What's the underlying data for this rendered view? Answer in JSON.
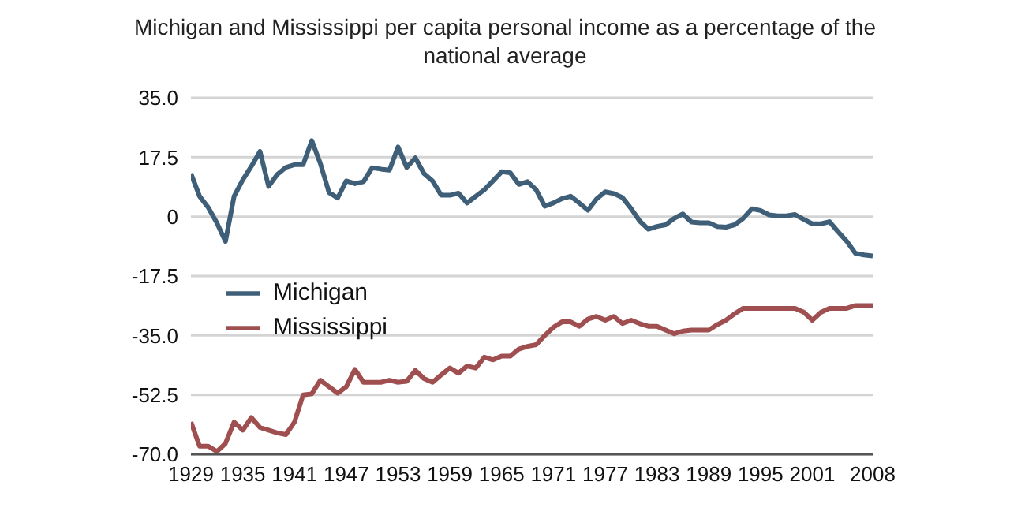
{
  "chart_data": {
    "type": "line",
    "title": "Michigan and Mississippi per capita personal income as a percentage of the national average",
    "x": [
      1929,
      1930,
      1931,
      1932,
      1933,
      1934,
      1935,
      1936,
      1937,
      1938,
      1939,
      1940,
      1941,
      1942,
      1943,
      1944,
      1945,
      1946,
      1947,
      1948,
      1949,
      1950,
      1951,
      1952,
      1953,
      1954,
      1955,
      1956,
      1957,
      1958,
      1959,
      1960,
      1961,
      1962,
      1963,
      1964,
      1965,
      1966,
      1967,
      1968,
      1969,
      1970,
      1971,
      1972,
      1973,
      1974,
      1975,
      1976,
      1977,
      1978,
      1979,
      1980,
      1981,
      1982,
      1983,
      1984,
      1985,
      1986,
      1987,
      1988,
      1989,
      1990,
      1991,
      1992,
      1993,
      1994,
      1995,
      1996,
      1997,
      1998,
      1999,
      2000,
      2001,
      2002,
      2003,
      2004,
      2005,
      2006,
      2007,
      2008
    ],
    "series": [
      {
        "name": "Michigan",
        "color": "#3f5f78",
        "values": [
          12.7,
          6,
          2.7,
          -1.8,
          -7.3,
          6,
          10.8,
          14.8,
          19.2,
          8.9,
          12.4,
          14.5,
          15.3,
          15.3,
          22.4,
          15.6,
          7.1,
          5.5,
          10.5,
          9.7,
          10.3,
          14.4,
          14,
          13.7,
          20.5,
          14.5,
          17.3,
          12.7,
          10.5,
          6.3,
          6.3,
          6.9,
          4,
          6,
          7.9,
          10.5,
          13.2,
          12.9,
          9.5,
          10.3,
          7.9,
          3.1,
          4,
          5.3,
          6,
          4,
          1.9,
          5.2,
          7.3,
          6.8,
          5.6,
          2.4,
          -1.3,
          -3.7,
          -2.9,
          -2.4,
          -0.5,
          0.8,
          -1.6,
          -1.8,
          -1.8,
          -2.9,
          -3.1,
          -2.4,
          -0.5,
          2.3,
          1.8,
          0.5,
          0.2,
          0.2,
          0.6,
          -0.8,
          -2.1,
          -2.1,
          -1.5,
          -4.5,
          -7.3,
          -10.8,
          -11.3,
          -11.6
        ]
      },
      {
        "name": "Mississippi",
        "color": "#a04f50",
        "values": [
          -60.5,
          -67.6,
          -67.6,
          -69.2,
          -66.8,
          -60.5,
          -62.9,
          -59.2,
          -62.1,
          -62.9,
          -63.7,
          -64.2,
          -60.5,
          -52.5,
          -52.2,
          -48.2,
          -50.1,
          -52,
          -50.1,
          -45,
          -48.8,
          -48.8,
          -48.8,
          -48.2,
          -48.8,
          -48.5,
          -45.3,
          -47.7,
          -48.8,
          -46.6,
          -44.6,
          -46.1,
          -44,
          -44.6,
          -41.4,
          -42.2,
          -41.1,
          -41.1,
          -39,
          -38.2,
          -37.7,
          -35,
          -32.6,
          -31,
          -31,
          -32.3,
          -30.2,
          -29.4,
          -30.5,
          -29.4,
          -31.5,
          -30.5,
          -31.5,
          -32.3,
          -32.3,
          -33.4,
          -34.5,
          -33.7,
          -33.4,
          -33.4,
          -33.4,
          -31.8,
          -30.5,
          -28.6,
          -27,
          -27,
          -27,
          -27,
          -27,
          -27,
          -27,
          -28.1,
          -30.5,
          -28.2,
          -27,
          -27,
          -27,
          -26.2,
          -26.2,
          -26.2
        ]
      }
    ],
    "xlim": [
      1929,
      2008
    ],
    "xticks": [
      1929,
      1935,
      1941,
      1947,
      1953,
      1959,
      1965,
      1971,
      1977,
      1983,
      1989,
      1995,
      2001,
      2008
    ],
    "ylim": [
      -70,
      35
    ],
    "yticks": [
      {
        "value": -70,
        "label": "-70.0"
      },
      {
        "value": -52.5,
        "label": "-52.5"
      },
      {
        "value": -35,
        "label": "-35.0"
      },
      {
        "value": -17.5,
        "label": "-17.5"
      },
      {
        "value": 0,
        "label": "0"
      },
      {
        "value": 17.5,
        "label": "17.5"
      },
      {
        "value": 35,
        "label": "35.0"
      }
    ],
    "grid": "y",
    "legend": "left",
    "marker": "none",
    "line_style": "solid"
  }
}
